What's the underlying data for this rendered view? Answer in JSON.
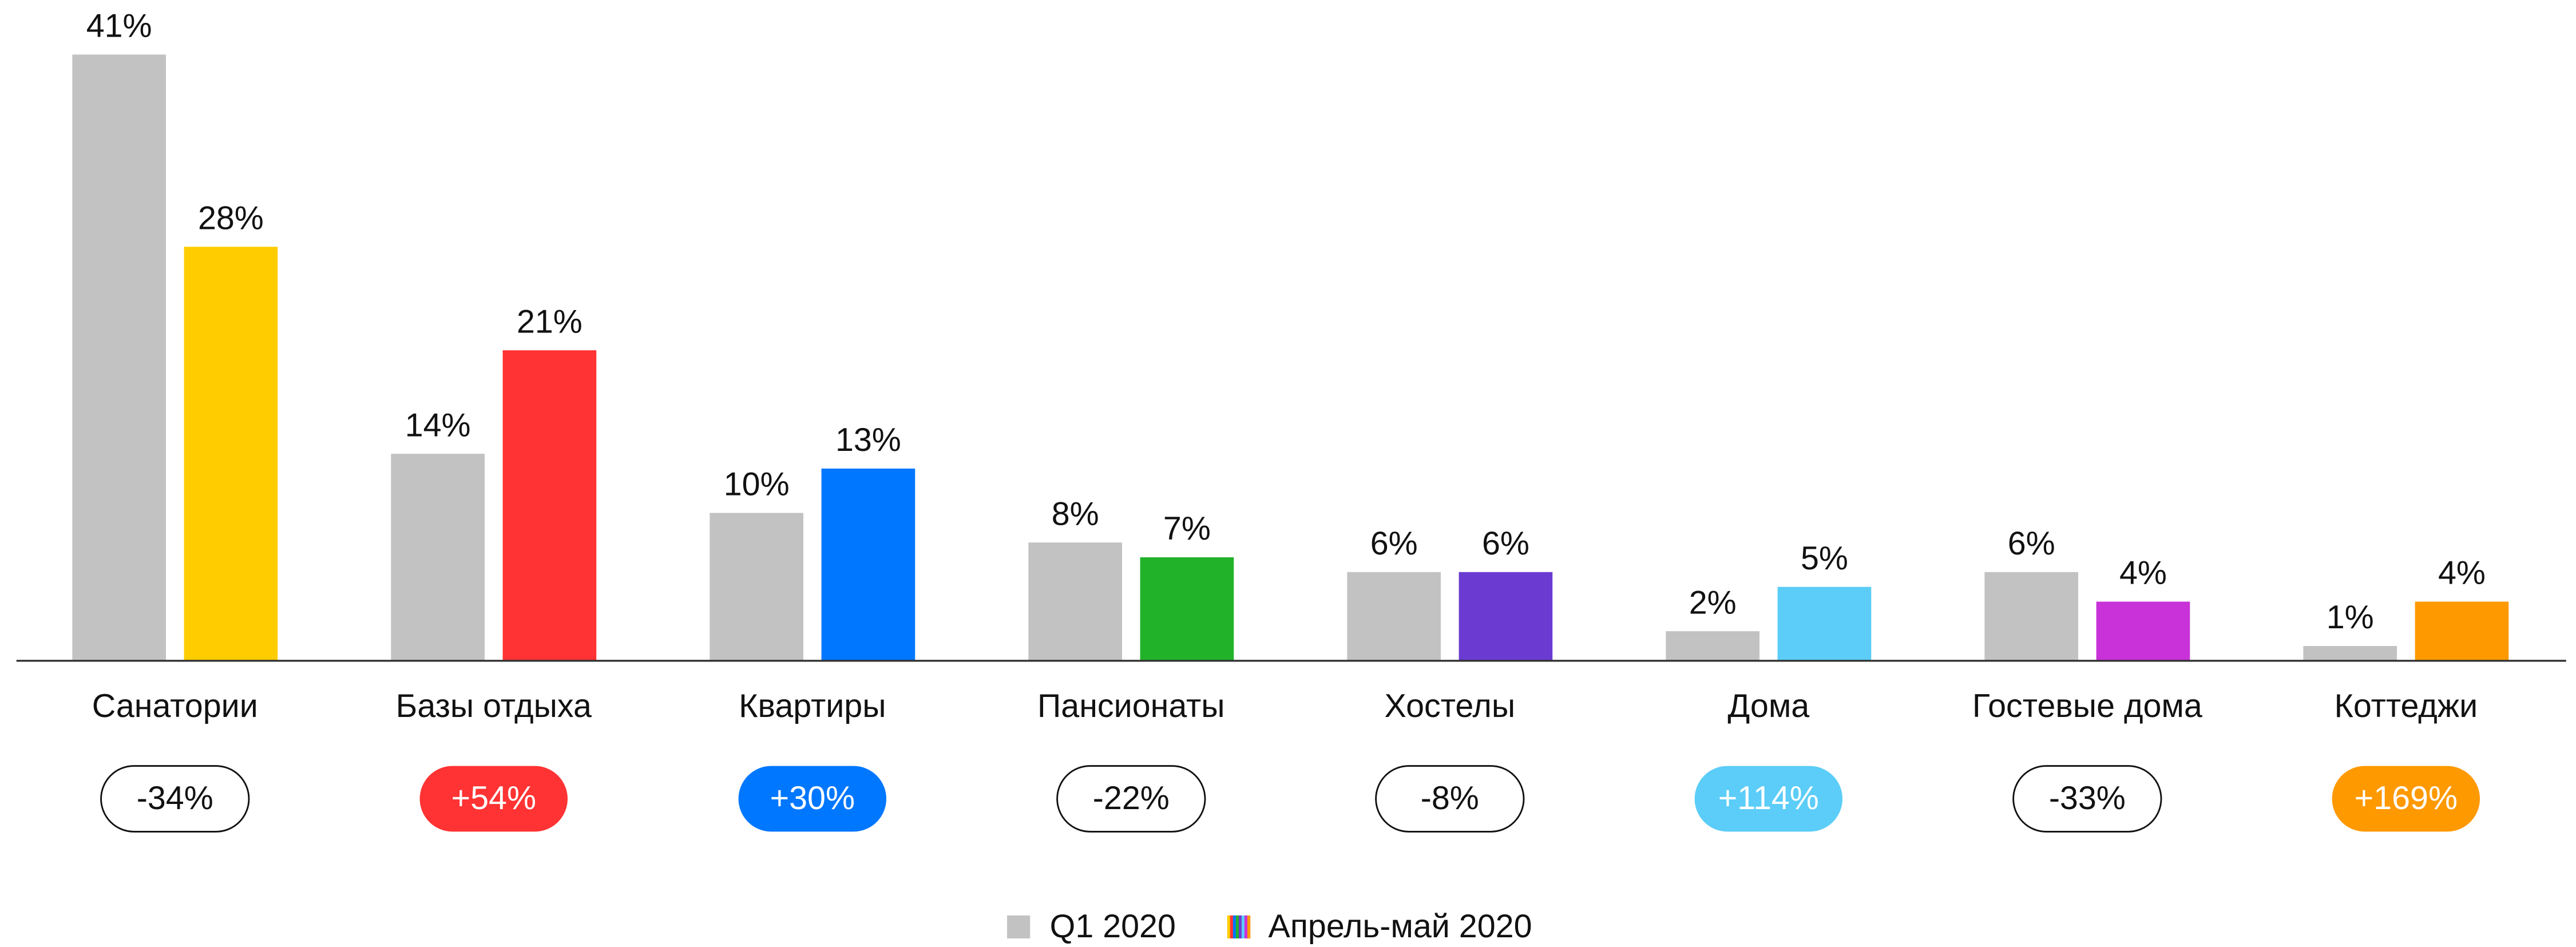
{
  "chart_data": {
    "type": "bar",
    "categories": [
      "Санатории",
      "Базы отдыха",
      "Квартиры",
      "Пансионаты",
      "Хостелы",
      "Дома",
      "Гостевые дома",
      "Коттеджи"
    ],
    "series": [
      {
        "name": "Q1 2020",
        "color": "#c2c2c2",
        "values": [
          41,
          14,
          10,
          8,
          6,
          2,
          6,
          1
        ],
        "value_labels": [
          "41%",
          "14%",
          "10%",
          "8%",
          "6%",
          "2%",
          "6%",
          "1%"
        ]
      },
      {
        "name": "Апрель-май 2020",
        "colors": [
          "#ffcc00",
          "#ff3333",
          "#0077ff",
          "#22b22a",
          "#6b3bd1",
          "#5bcdf8",
          "#c832d8",
          "#ff9900"
        ],
        "values": [
          28,
          21,
          13,
          7,
          6,
          5,
          4,
          4
        ],
        "value_labels": [
          "28%",
          "21%",
          "13%",
          "7%",
          "6%",
          "5%",
          "4%",
          "4%"
        ]
      }
    ],
    "changes": [
      -34,
      54,
      30,
      -22,
      -8,
      114,
      -33,
      169
    ],
    "change_labels": [
      "-34%",
      "+54%",
      "+30%",
      "-22%",
      "-8%",
      "+114%",
      "-33%",
      "+169%"
    ],
    "change_colors": [
      null,
      "#ff3333",
      "#0077ff",
      null,
      null,
      "#5bcdf8",
      null,
      "#ff9900"
    ],
    "ylim": [
      0,
      41
    ],
    "legend": "bottom"
  }
}
